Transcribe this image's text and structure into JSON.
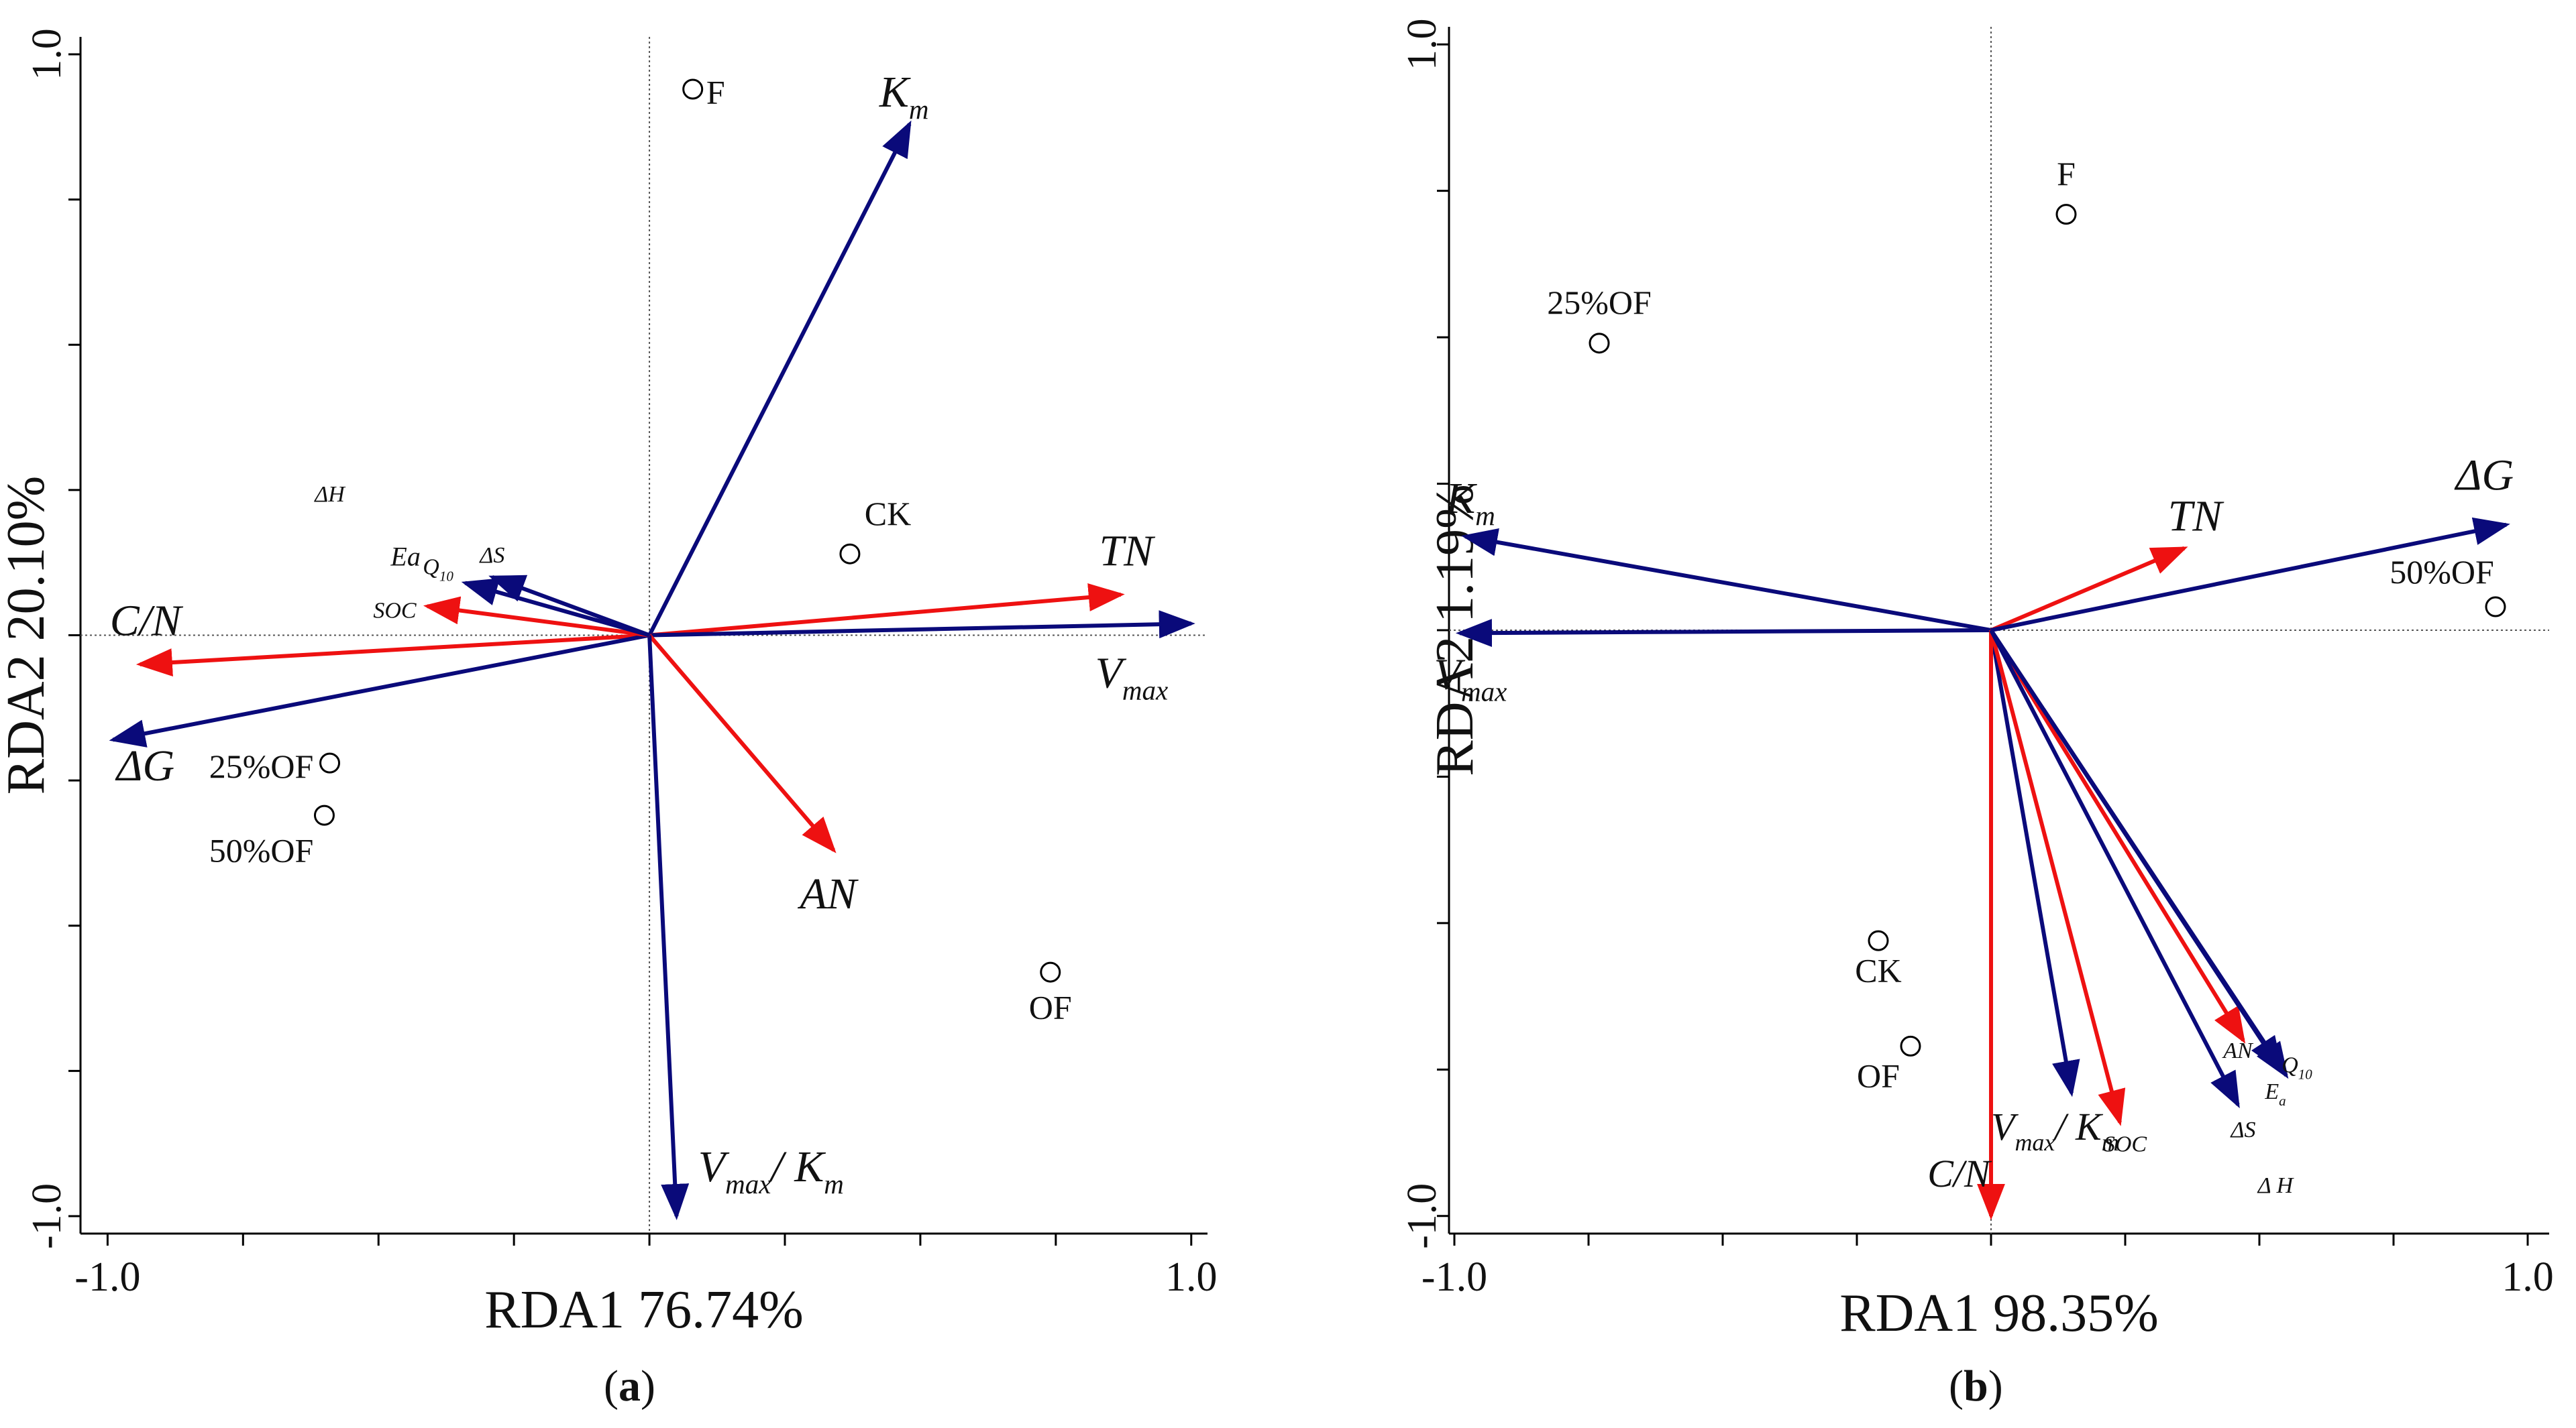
{
  "colors": {
    "response": "#0a0a7a",
    "env": "#ee1111",
    "axis": "#000000"
  },
  "chart_data": [
    {
      "type": "scatter",
      "panel": "(a)",
      "panel_letter": "a",
      "xlabel": "RDA1 76.74%",
      "ylabel": "RDA2 20.10%",
      "xlim": [
        -1.05,
        1.03
      ],
      "ylim": [
        -1.03,
        1.03
      ],
      "tick_labels": {
        "x_min": "-1.0",
        "x_max": "1.0",
        "y_min": "-1.0",
        "y_max": "1.0"
      },
      "arrows": [
        {
          "name": "Km",
          "label": "K",
          "sub": "m",
          "group": "response",
          "x": 0.48,
          "y": 0.88,
          "lx": 0.47,
          "ly": 0.91,
          "anchor": "middle",
          "size": "large"
        },
        {
          "name": "TN",
          "label": "TN",
          "group": "env",
          "x": 0.87,
          "y": 0.07,
          "lx": 0.88,
          "ly": 0.12,
          "anchor": "middle",
          "size": "large"
        },
        {
          "name": "Vmax",
          "label": "V",
          "sub": "max",
          "group": "response",
          "x": 1.0,
          "y": 0.02,
          "lx": 0.89,
          "ly": -0.09,
          "anchor": "middle",
          "size": "large"
        },
        {
          "name": "AN",
          "label": "AN",
          "group": "env",
          "x": 0.34,
          "y": -0.37,
          "lx": 0.33,
          "ly": -0.47,
          "anchor": "middle",
          "size": "large"
        },
        {
          "name": "VmaxKm",
          "label": "V",
          "sub": "max",
          "suffix": "/ K",
          "sub2": "m",
          "group": "response",
          "x": 0.05,
          "y": -1.0,
          "lx": 0.09,
          "ly": -0.94,
          "anchor": "start",
          "size": "large"
        },
        {
          "name": "CN",
          "label": "C/N",
          "group": "env",
          "x": -0.94,
          "y": -0.05,
          "lx": -0.93,
          "ly": 0.0,
          "anchor": "middle",
          "size": "large"
        },
        {
          "name": "dG",
          "label": "ΔG",
          "group": "response",
          "x": -0.99,
          "y": -0.18,
          "lx": -0.93,
          "ly": -0.25,
          "anchor": "middle",
          "size": "large"
        },
        {
          "name": "SOC",
          "label": "SOC",
          "group": "env",
          "x": -0.41,
          "y": 0.05,
          "lx": -0.47,
          "ly": 0.03,
          "anchor": "middle",
          "size": "tiny"
        },
        {
          "name": "Q10",
          "label": "Q",
          "sub": "10",
          "group": "response",
          "x": -0.34,
          "y": 0.09,
          "lx": -0.39,
          "ly": 0.105,
          "anchor": "middle",
          "size": "tiny"
        },
        {
          "name": "dS",
          "label": "ΔS",
          "group": "response",
          "x": -0.29,
          "y": 0.1,
          "lx": -0.29,
          "ly": 0.125,
          "anchor": "middle",
          "size": "tiny"
        }
      ],
      "labels": [
        {
          "name": "Ea",
          "text": "Ea",
          "x": -0.45,
          "y": 0.12,
          "anchor": "middle",
          "size": "small"
        },
        {
          "name": "dH",
          "text": "ΔH",
          "x": -0.59,
          "y": 0.23,
          "anchor": "middle",
          "size": "tiny"
        }
      ],
      "sites": [
        {
          "name": "F",
          "label": "F",
          "x": 0.08,
          "y": 0.94,
          "lx": 0.105,
          "ly": 0.915,
          "anchor": "start"
        },
        {
          "name": "CK",
          "label": "CK",
          "x": 0.37,
          "y": 0.14,
          "lx": 0.44,
          "ly": 0.19,
          "anchor": "middle"
        },
        {
          "name": "25OF",
          "label": "25%OF",
          "x": -0.59,
          "y": -0.22,
          "lx": -0.62,
          "ly": -0.245,
          "anchor": "end"
        },
        {
          "name": "50OF",
          "label": "50%OF",
          "x": -0.6,
          "y": -0.31,
          "lx": -0.62,
          "ly": -0.39,
          "anchor": "end"
        },
        {
          "name": "OF",
          "label": "OF",
          "x": 0.74,
          "y": -0.58,
          "lx": 0.74,
          "ly": -0.66,
          "anchor": "middle"
        }
      ]
    },
    {
      "type": "scatter",
      "panel": "(b)",
      "panel_letter": "b",
      "xlabel": "RDA1 98.35%",
      "ylabel": "RDA2 1.19%",
      "xlim": [
        -1.01,
        1.04
      ],
      "ylim": [
        -1.03,
        1.03
      ],
      "tick_labels": {
        "x_min": "-1.0",
        "x_max": "1.0",
        "y_min": "-1.0",
        "y_max": "1.0"
      },
      "arrows": [
        {
          "name": "Km",
          "label": "K",
          "sub": "m",
          "group": "response",
          "x": -0.98,
          "y": 0.16,
          "lx": -0.97,
          "ly": 0.2,
          "anchor": "middle",
          "size": "large"
        },
        {
          "name": "Vmax",
          "label": "V",
          "sub": "max",
          "group": "response",
          "x": -0.99,
          "y": -0.005,
          "lx": -0.97,
          "ly": -0.1,
          "anchor": "middle",
          "size": "large"
        },
        {
          "name": "TN",
          "label": "TN",
          "group": "env",
          "x": 0.36,
          "y": 0.14,
          "lx": 0.38,
          "ly": 0.17,
          "anchor": "middle",
          "size": "large"
        },
        {
          "name": "dG",
          "label": "ΔG",
          "group": "response",
          "x": 0.96,
          "y": 0.18,
          "lx": 0.92,
          "ly": 0.24,
          "anchor": "middle",
          "size": "large"
        },
        {
          "name": "VmaxKm",
          "label": "V",
          "sub": "max",
          "suffix": "/ K",
          "sub2": "m",
          "group": "response",
          "x": 0.15,
          "y": -0.79,
          "lx": 0.0,
          "ly": -0.87,
          "anchor": "start",
          "size": "medium"
        },
        {
          "name": "SOC",
          "label": "SOC",
          "group": "env",
          "x": 0.24,
          "y": -0.84,
          "lx": 0.25,
          "ly": -0.89,
          "anchor": "middle",
          "size": "tiny"
        },
        {
          "name": "CN",
          "label": "C/N",
          "group": "env",
          "x": 0.0,
          "y": -1.0,
          "lx": -0.06,
          "ly": -0.95,
          "anchor": "middle",
          "size": "medium"
        },
        {
          "name": "AN",
          "label": "AN",
          "group": "env",
          "x": 0.47,
          "y": -0.7,
          "lx": 0.46,
          "ly": -0.73,
          "anchor": "middle",
          "size": "tiny"
        },
        {
          "name": "dS",
          "label": "ΔS",
          "group": "response",
          "x": 0.46,
          "y": -0.81,
          "lx": 0.47,
          "ly": -0.865,
          "anchor": "middle",
          "size": "tiny"
        },
        {
          "name": "Q10",
          "label": "Q",
          "sub": "10",
          "group": "response",
          "x": 0.55,
          "y": -0.76,
          "lx": 0.57,
          "ly": -0.755,
          "anchor": "middle",
          "size": "tiny"
        },
        {
          "name": "Ea",
          "label": "E",
          "sub": "a",
          "group": "response",
          "x": 0.54,
          "y": -0.75,
          "lx": 0.53,
          "ly": -0.8,
          "anchor": "middle",
          "size": "tiny"
        }
      ],
      "labels": [
        {
          "name": "dH",
          "text": "Δ H",
          "x": 0.53,
          "y": -0.96,
          "anchor": "middle",
          "size": "tiny"
        }
      ],
      "sites": [
        {
          "name": "F",
          "label": "F",
          "x": 0.14,
          "y": 0.71,
          "lx": 0.14,
          "ly": 0.76,
          "anchor": "middle"
        },
        {
          "name": "25OF",
          "label": "25%OF",
          "x": -0.73,
          "y": 0.49,
          "lx": -0.73,
          "ly": 0.54,
          "anchor": "middle"
        },
        {
          "name": "50OF",
          "label": "50%OF",
          "x": 0.94,
          "y": 0.04,
          "lx": 0.84,
          "ly": 0.08,
          "anchor": "middle"
        },
        {
          "name": "CK",
          "label": "CK",
          "x": -0.21,
          "y": -0.53,
          "lx": -0.21,
          "ly": -0.6,
          "anchor": "middle"
        },
        {
          "name": "OF",
          "label": "OF",
          "x": -0.15,
          "y": -0.71,
          "lx": -0.21,
          "ly": -0.78,
          "anchor": "middle"
        }
      ]
    }
  ]
}
